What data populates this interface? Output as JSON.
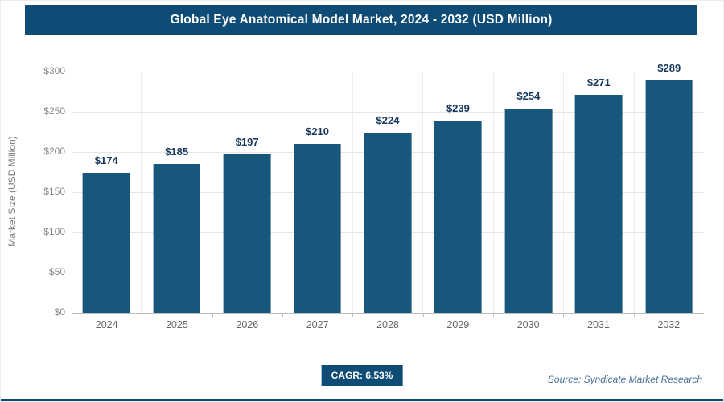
{
  "header": {
    "title": "Global Eye Anatomical Model Market, 2024 - 2032 (USD Million)"
  },
  "footer": {
    "cagr_label": "CAGR: 6.53%",
    "source": "Source: Syndicate Market Research"
  },
  "colors": {
    "primary": "#0e4b75",
    "bar": "#17577c",
    "value_label": "#16365c",
    "gridline": "#e5e5e5",
    "axis_line": "#bdbdbd"
  },
  "chart_data": {
    "type": "bar",
    "title": "Global Eye Anatomical Model Market, 2024 - 2032 (USD Million)",
    "categories": [
      "2024",
      "2025",
      "2026",
      "2027",
      "2028",
      "2029",
      "2030",
      "2031",
      "2032"
    ],
    "values": [
      174,
      185,
      197,
      210,
      224,
      239,
      254,
      271,
      289
    ],
    "value_labels": [
      "$174",
      "$185",
      "$197",
      "$210",
      "$224",
      "$239",
      "$254",
      "$271",
      "$289"
    ],
    "xlabel": "",
    "ylabel": "Market Size (USD Million)",
    "ylim": [
      0,
      300
    ],
    "yticks": [
      0,
      50,
      100,
      150,
      200,
      250,
      300
    ],
    "ytick_labels": [
      "$0",
      "$50",
      "$100",
      "$150",
      "$200",
      "$250",
      "$300"
    ],
    "grid": true,
    "legend": false,
    "annotations": [
      "CAGR: 6.53%"
    ]
  }
}
